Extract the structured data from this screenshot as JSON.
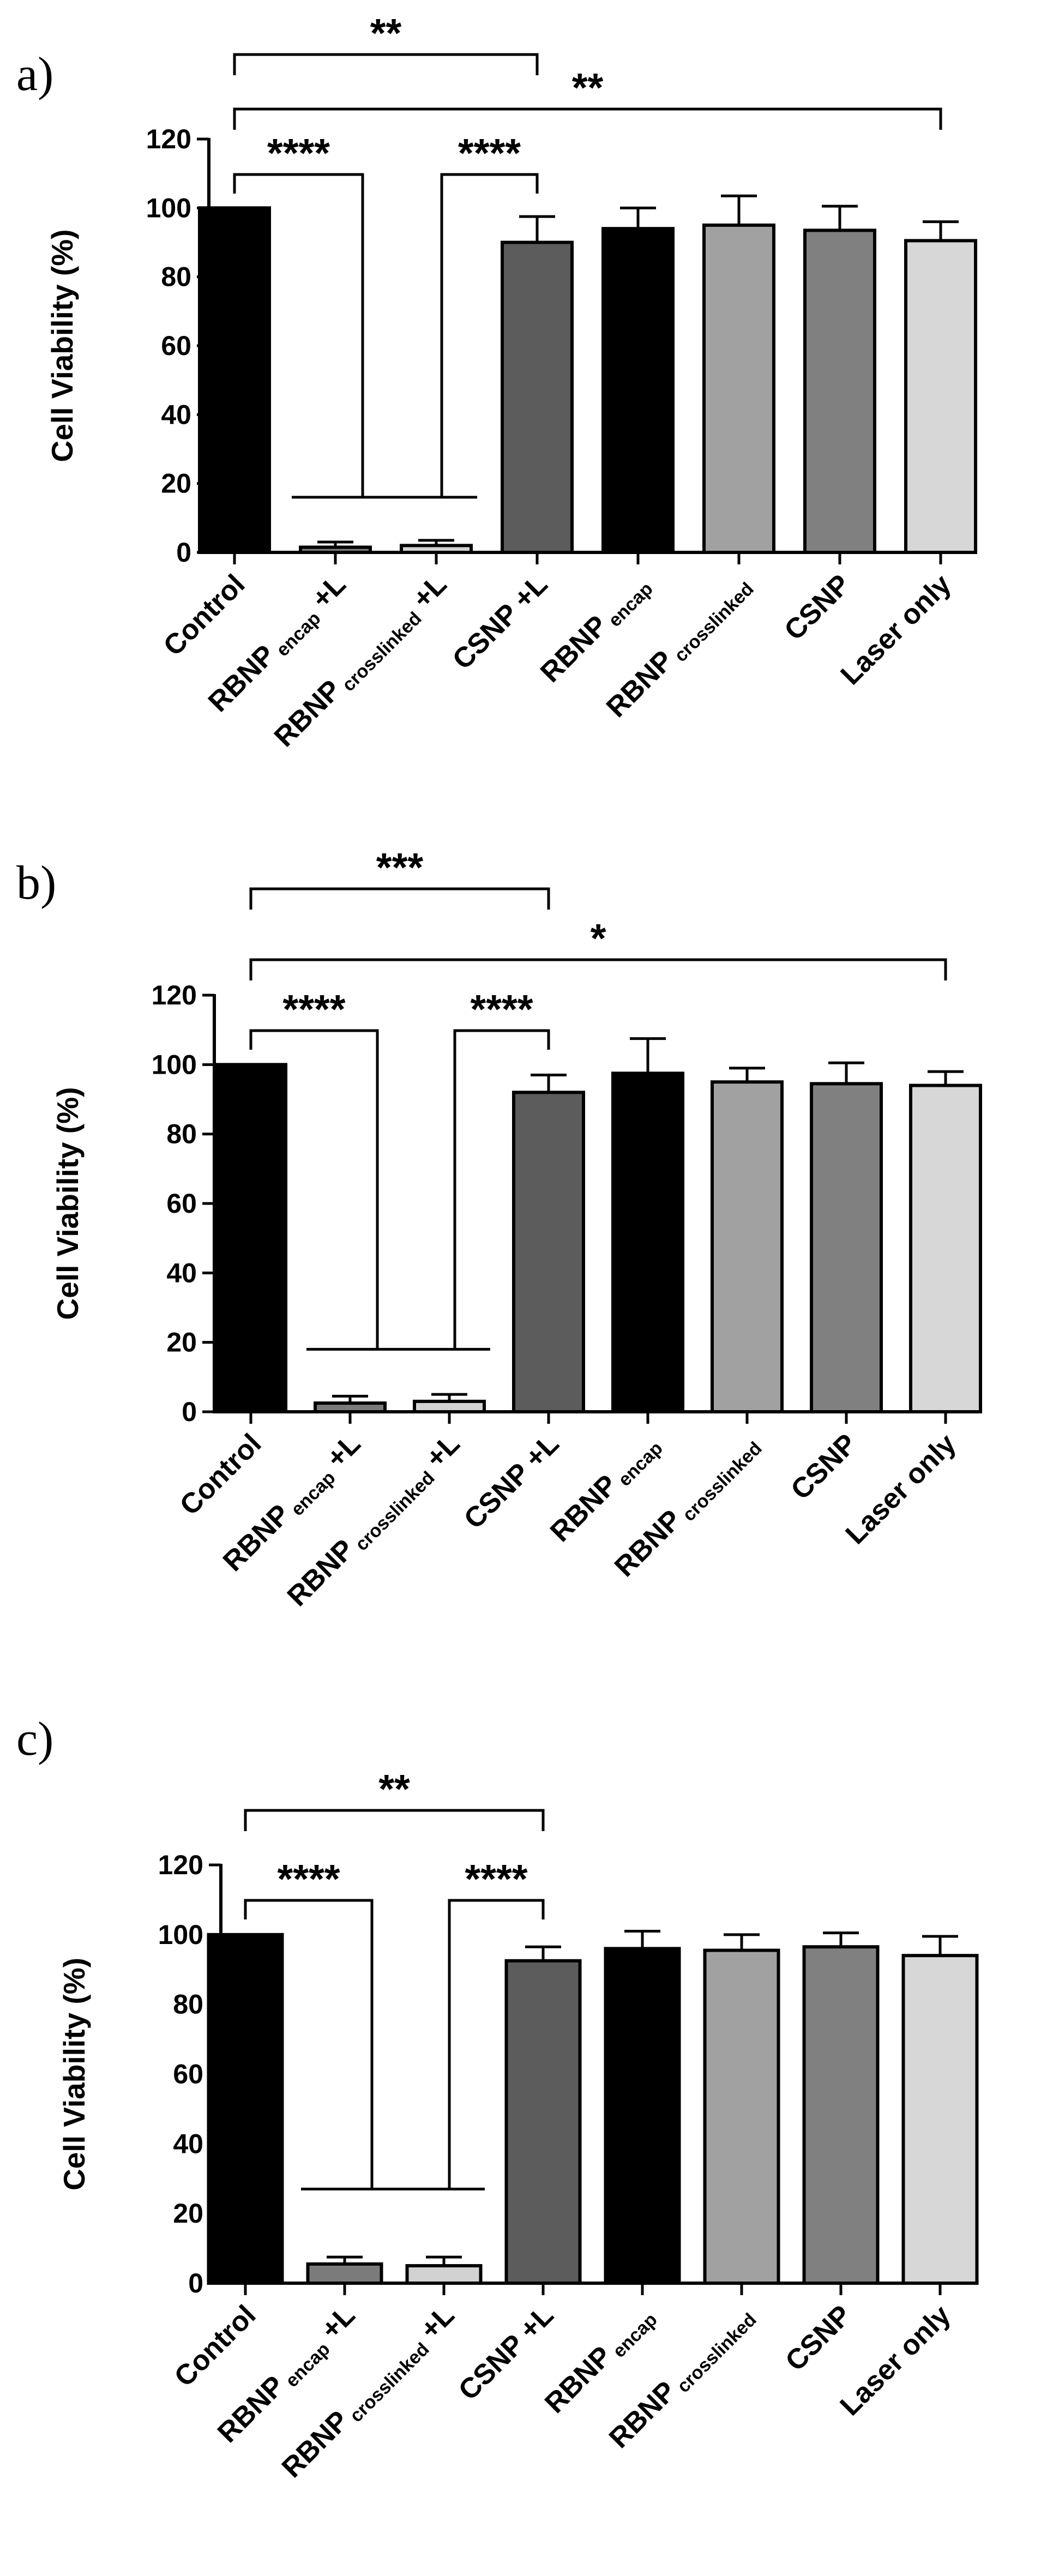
{
  "figure": {
    "colors": {
      "Control": "#000000",
      "RBNP_encap_L": "#7b7b7b",
      "RBNP_crosslinked_L": "#d2d2d2",
      "CSNP_L": "#5c5c5c",
      "RBNP_encap": "#000000",
      "RBNP_crosslinked": "#a1a1a1",
      "CSNP": "#808080",
      "Laser_only": "#d7d7d7"
    }
  },
  "chart_data": [
    {
      "type": "bar",
      "panel": "a)",
      "ylabel": "Cell Viability (%)",
      "ylim": [
        0,
        120
      ],
      "yticks": [
        "0",
        "20",
        "40",
        "60",
        "80",
        "100",
        "120"
      ],
      "categories": [
        {
          "main": "Control",
          "sub": "",
          "suffix": ""
        },
        {
          "main": "RBNP",
          "sub": "encap",
          "suffix": " +L"
        },
        {
          "main": "RBNP",
          "sub": "crosslinked",
          "suffix": " +L"
        },
        {
          "main": "CSNP +L",
          "sub": "",
          "suffix": ""
        },
        {
          "main": "RBNP",
          "sub": "encap",
          "suffix": ""
        },
        {
          "main": "RBNP",
          "sub": "crosslinked",
          "suffix": ""
        },
        {
          "main": "CSNP",
          "sub": "",
          "suffix": ""
        },
        {
          "main": "Laser only",
          "sub": "",
          "suffix": ""
        }
      ],
      "values": [
        100,
        1.5,
        2,
        90,
        94,
        95,
        93.5,
        90.5
      ],
      "errors": [
        0,
        1.5,
        1.5,
        7.5,
        6,
        8.5,
        7,
        5.5
      ],
      "brackets": [
        {
          "label": "**",
          "from": 0,
          "to": 3
        },
        {
          "label": "**",
          "from": 0,
          "to": 7
        }
      ],
      "inner_brackets": [
        {
          "label": "****",
          "left": 0,
          "right": 3
        },
        {
          "level": 16
        }
      ]
    },
    {
      "type": "bar",
      "panel": "b)",
      "ylabel": "Cell Viability (%)",
      "ylim": [
        0,
        120
      ],
      "yticks": [
        "0",
        "20",
        "40",
        "60",
        "80",
        "100",
        "120"
      ],
      "categories": [
        {
          "main": "Control",
          "sub": "",
          "suffix": ""
        },
        {
          "main": "RBNP",
          "sub": "encap",
          "suffix": " +L"
        },
        {
          "main": "RBNP",
          "sub": "crosslinked",
          "suffix": " +L"
        },
        {
          "main": "CSNP +L",
          "sub": "",
          "suffix": ""
        },
        {
          "main": "RBNP",
          "sub": "encap",
          "suffix": ""
        },
        {
          "main": "RBNP",
          "sub": "crosslinked",
          "suffix": ""
        },
        {
          "main": "CSNP",
          "sub": "",
          "suffix": ""
        },
        {
          "main": "Laser only",
          "sub": "",
          "suffix": ""
        }
      ],
      "values": [
        100,
        2.5,
        3,
        92,
        97.5,
        95,
        94.5,
        94
      ],
      "errors": [
        0,
        2,
        2,
        5,
        10,
        4,
        6,
        4
      ],
      "brackets": [
        {
          "label": "***",
          "from": 0,
          "to": 3
        },
        {
          "label": "*",
          "from": 0,
          "to": 7
        }
      ],
      "inner_brackets": [
        {
          "label": "****",
          "left": 0,
          "right": 3
        },
        {
          "level": 18
        }
      ]
    },
    {
      "type": "bar",
      "panel": "c)",
      "ylabel": "Cell Viability (%)",
      "ylim": [
        0,
        120
      ],
      "yticks": [
        "0",
        "20",
        "40",
        "60",
        "80",
        "100",
        "120"
      ],
      "categories": [
        {
          "main": "Control",
          "sub": "",
          "suffix": ""
        },
        {
          "main": "RBNP",
          "sub": "encap",
          "suffix": " +L"
        },
        {
          "main": "RBNP",
          "sub": "crosslinked",
          "suffix": " +L"
        },
        {
          "main": "CSNP +L",
          "sub": "",
          "suffix": ""
        },
        {
          "main": "RBNP",
          "sub": "encap",
          "suffix": ""
        },
        {
          "main": "RBNP",
          "sub": "crosslinked",
          "suffix": ""
        },
        {
          "main": "CSNP",
          "sub": "",
          "suffix": ""
        },
        {
          "main": "Laser only",
          "sub": "",
          "suffix": ""
        }
      ],
      "values": [
        100,
        5.5,
        5,
        92.5,
        96,
        95.5,
        96.5,
        94
      ],
      "errors": [
        0,
        2,
        2.5,
        4,
        5,
        4.5,
        4,
        5.5
      ],
      "brackets": [
        {
          "label": "**",
          "from": 0,
          "to": 3
        }
      ],
      "inner_brackets": [
        {
          "label": "****",
          "left": 0,
          "right": 3
        },
        {
          "level": 27
        }
      ]
    }
  ]
}
